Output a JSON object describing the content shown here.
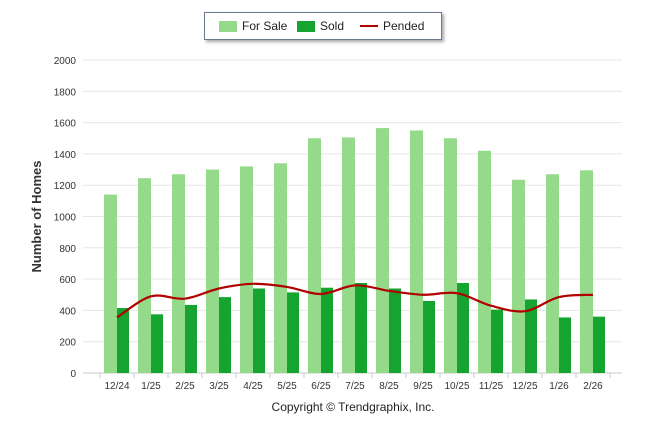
{
  "chart_data": {
    "type": "bar",
    "ylabel": "Number of Homes",
    "ylim": [
      0,
      2000
    ],
    "yticks": [
      "0",
      "200",
      "400",
      "600",
      "800",
      "1000",
      "1200",
      "1400",
      "1600",
      "1800",
      "2000"
    ],
    "categories": [
      "12/24",
      "1/25",
      "2/25",
      "3/25",
      "4/25",
      "5/25",
      "6/25",
      "7/25",
      "8/25",
      "9/25",
      "10/25",
      "11/25",
      "12/25",
      "1/26",
      "2/26"
    ],
    "series": [
      {
        "name": "For Sale",
        "kind": "bar",
        "color": "#95d98a",
        "values": [
          1140,
          1245,
          1270,
          1300,
          1320,
          1340,
          1500,
          1505,
          1565,
          1550,
          1500,
          1420,
          1235,
          1270,
          1295
        ]
      },
      {
        "name": "Sold",
        "kind": "bar",
        "color": "#14a42f",
        "values": [
          415,
          375,
          435,
          485,
          540,
          515,
          545,
          575,
          540,
          460,
          575,
          405,
          470,
          355,
          360
        ]
      },
      {
        "name": "Pended",
        "kind": "line",
        "color": "#b00000",
        "values": [
          355,
          490,
          475,
          540,
          570,
          550,
          505,
          560,
          525,
          500,
          510,
          430,
          395,
          485,
          500
        ]
      }
    ],
    "legend_position": "top-center",
    "grid": true
  },
  "footer": {
    "copyright": "Copyright © Trendgraphix, Inc."
  }
}
